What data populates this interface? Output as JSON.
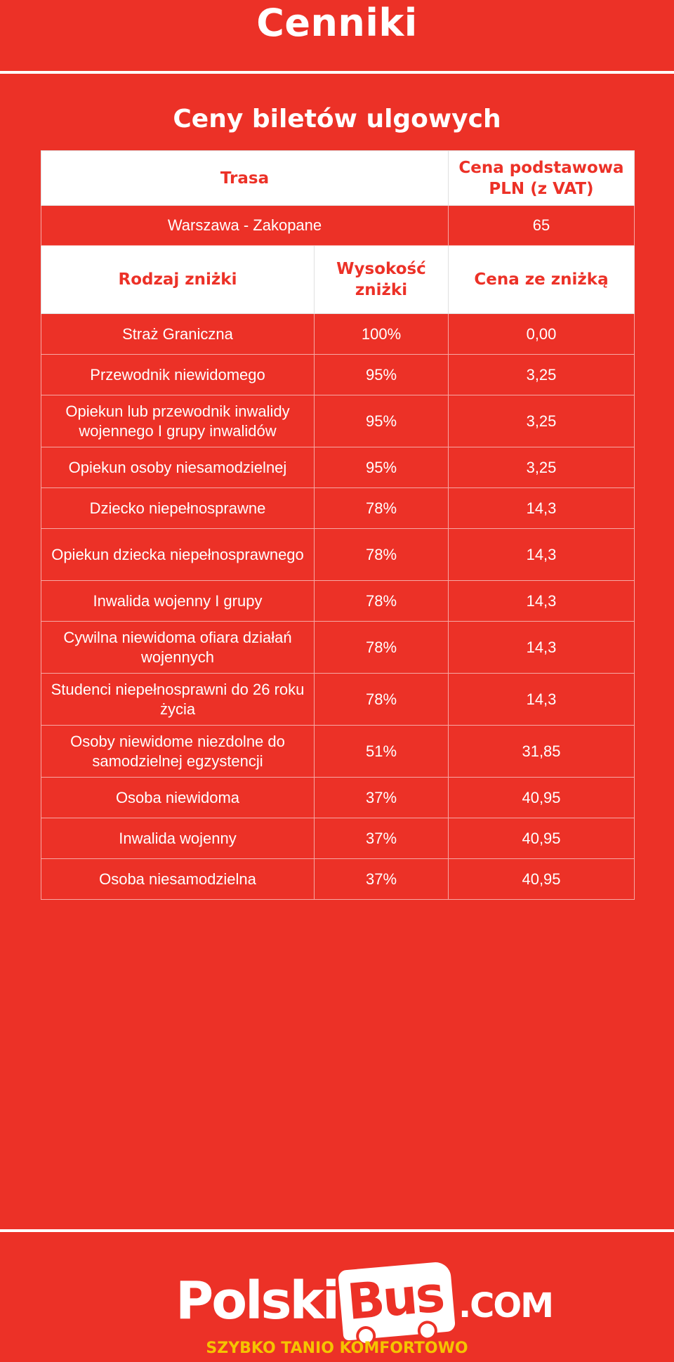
{
  "page": {
    "title": "Cenniki",
    "subtitle": "Ceny biletów ulgowych"
  },
  "table": {
    "route_header": "Trasa",
    "base_price_header": "Cena podstawowa PLN (z VAT)",
    "route": "Warszawa - Zakopane",
    "base_price": "65",
    "discount_type_header": "Rodzaj zniżki",
    "discount_amount_header": "Wysokość zniżki",
    "discounted_price_header": "Cena ze zniżką",
    "rows": [
      {
        "type": "Straż Graniczna",
        "discount": "100%",
        "price": "0,00"
      },
      {
        "type": "Przewodnik niewidomego",
        "discount": "95%",
        "price": "3,25"
      },
      {
        "type": "Opiekun lub przewodnik inwalidy wojennego I grupy inwalidów",
        "discount": "95%",
        "price": "3,25"
      },
      {
        "type": "Opiekun osoby niesamodzielnej",
        "discount": "95%",
        "price": "3,25"
      },
      {
        "type": "Dziecko niepełnosprawne",
        "discount": "78%",
        "price": "14,3"
      },
      {
        "type": "Opiekun dziecka niepełnosprawnego",
        "discount": "78%",
        "price": "14,3"
      },
      {
        "type": "Inwalida wojenny I grupy",
        "discount": "78%",
        "price": "14,3"
      },
      {
        "type": "Cywilna niewidoma ofiara działań wojennych",
        "discount": "78%",
        "price": "14,3"
      },
      {
        "type": "Studenci niepełnosprawni do 26 roku życia",
        "discount": "78%",
        "price": "14,3"
      },
      {
        "type": "Osoby niewidome niezdolne do samodzielnej egzystencji",
        "discount": "51%",
        "price": "31,85"
      },
      {
        "type": "Osoba niewidoma",
        "discount": "37%",
        "price": "40,95"
      },
      {
        "type": "Inwalida wojenny",
        "discount": "37%",
        "price": "40,95"
      },
      {
        "type": "Osoba niesamodzielna",
        "discount": "37%",
        "price": "40,95"
      }
    ]
  },
  "footer": {
    "logo_part1": "Polski",
    "logo_part2": "Bus",
    "logo_part3": ".COM",
    "slogan": "SZYBKO TANIO KOMFORTOWO",
    "slogan_color": "#f5c400"
  },
  "colors": {
    "background": "#ec3127",
    "text": "#ffffff",
    "header_bg": "#ffffff",
    "header_text": "#ec3127"
  }
}
